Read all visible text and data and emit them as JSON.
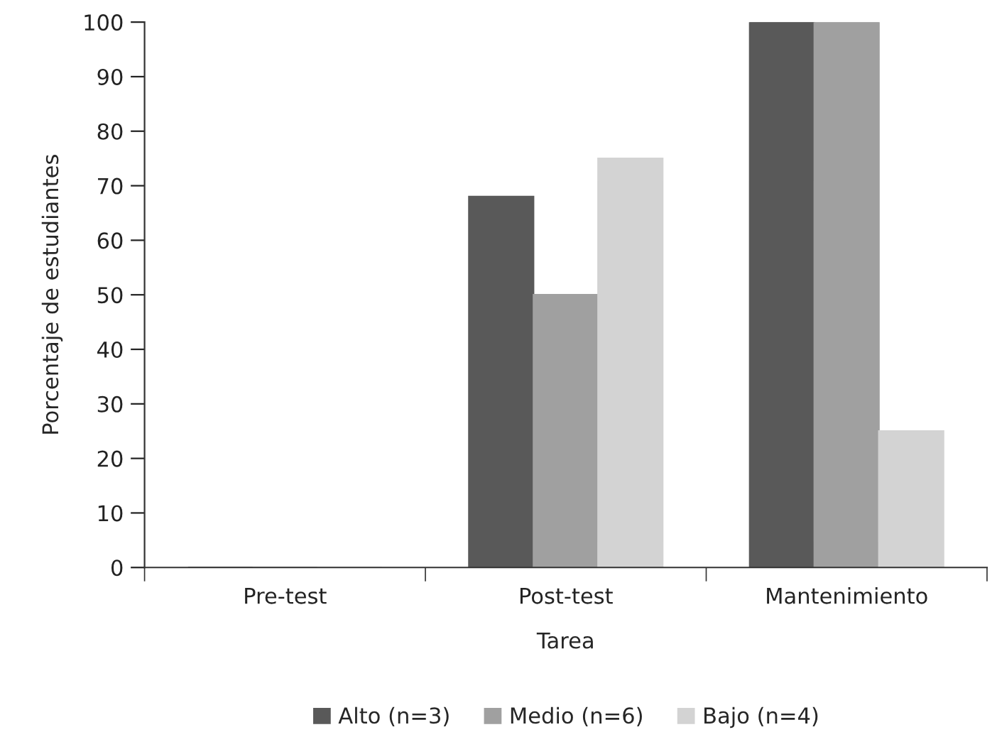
{
  "chart_data": {
    "type": "bar",
    "xlabel": "Tarea",
    "ylabel": "Porcentaje de estudiantes",
    "categories": [
      "Pre-test",
      "Post-test",
      "Mantenimiento"
    ],
    "series": [
      {
        "name": "Alto (n=3)",
        "color": "#595959",
        "values": [
          0,
          68,
          100
        ]
      },
      {
        "name": "Medio (n=6)",
        "color": "#a0a0a0",
        "values": [
          0,
          50,
          100
        ]
      },
      {
        "name": "Bajo (n=4)",
        "color": "#d3d3d3",
        "values": [
          0,
          75,
          25
        ]
      }
    ],
    "ylim": [
      0,
      100
    ],
    "yticks": [
      0,
      10,
      20,
      30,
      40,
      50,
      60,
      70,
      80,
      90,
      100
    ],
    "grid": false,
    "legend": "bottom"
  }
}
